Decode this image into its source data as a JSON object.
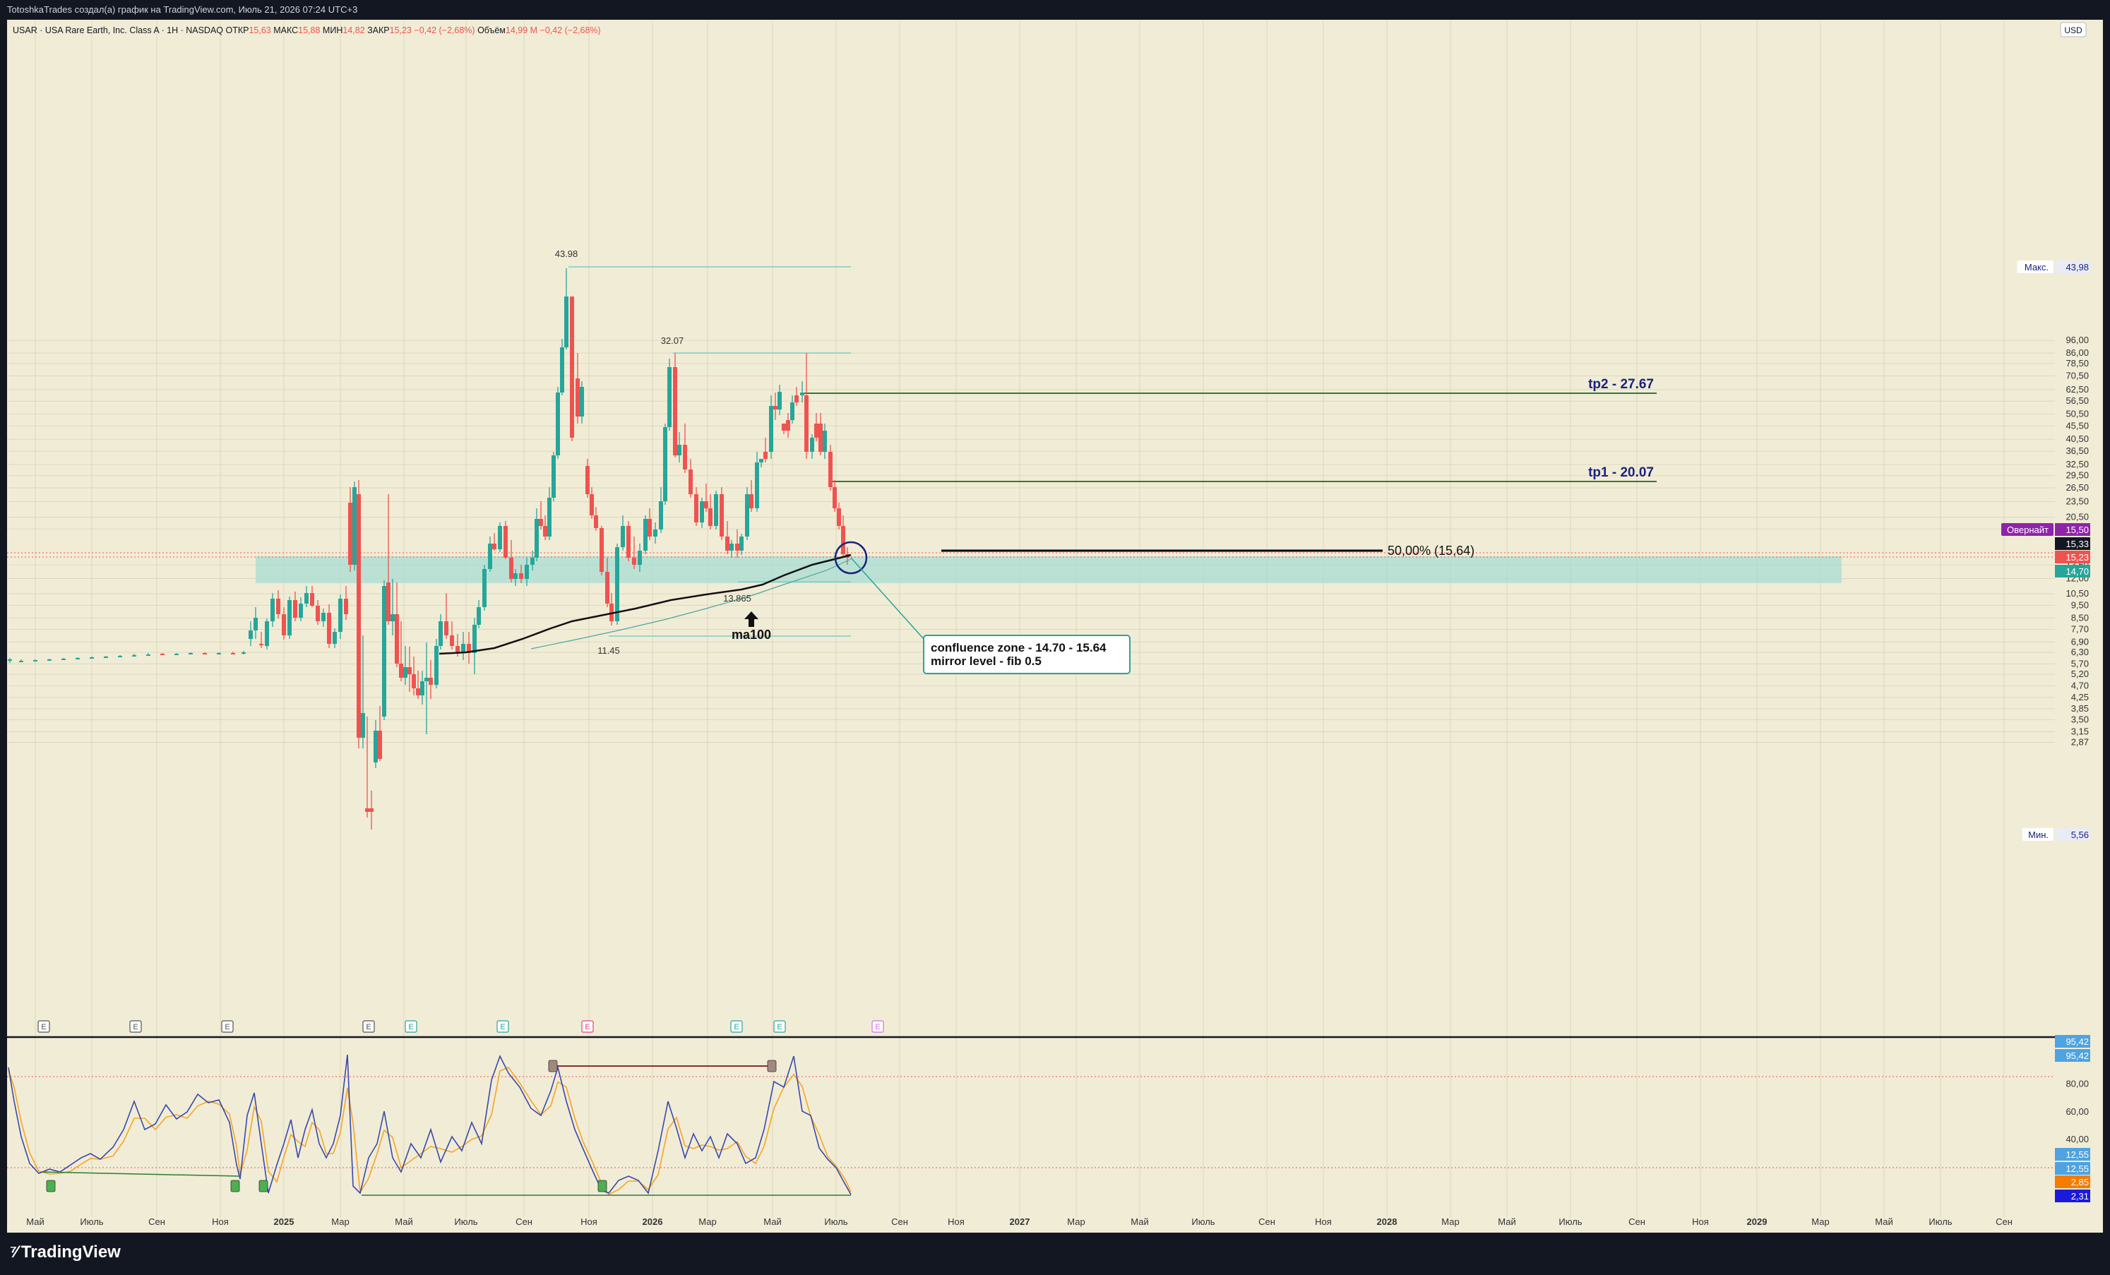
{
  "header": {
    "attribution": "TotoshkaTrades создал(а) график на TradingView.com, Июль 21, 2026 07:24 UTC+3"
  },
  "legend": {
    "symbol": "USAR · USA Rare Earth, Inc. Class A · 1Н · NASDAQ",
    "open_label": "ОТКР",
    "open_value": "15,63",
    "high_label": "МАКС",
    "high_value": "15,88",
    "low_label": "МИН",
    "low_value": "14,82",
    "close_label": "ЗАКР",
    "close_value": "15,23",
    "change": "−0,42 (−2,68%)",
    "volume_label": "Объём",
    "volume_value": "14,99 M",
    "volume_change": "−0,42 (−2,68%)"
  },
  "currency": "USD",
  "price_axis": {
    "ticks": [
      "96,00",
      "86,00",
      "78,50",
      "70,50",
      "62,50",
      "56,50",
      "50,50",
      "45,50",
      "40,50",
      "36,50",
      "32,50",
      "29,50",
      "26,50",
      "23,50",
      "20,50",
      "18,50",
      "13,50",
      "12,00",
      "10,50",
      "9,50",
      "8,50",
      "7,70",
      "6,90",
      "6,30",
      "5,70",
      "5,20",
      "4,70",
      "4,25",
      "3,85",
      "3,50",
      "3,15",
      "2,87"
    ],
    "max_label": "Макс.",
    "max_value": "43,98",
    "min_label": "Мин.",
    "min_value": "5,56",
    "overnight_label": "Овернайт",
    "overnight_value": "15,50",
    "price_black": "15,33",
    "price_red": "15,23",
    "price_teal": "14,70"
  },
  "annotations": {
    "high1": "43.98",
    "high2": "32.07",
    "low_a": "11.45",
    "low_b": "13.865",
    "ma_label": "ma100",
    "tp2": "tp2 - 27.67",
    "tp1": "tp1 - 20.07",
    "fib": "50,00% (15,64)",
    "callout_line1": "confluence zone - 14.70 - 15.64",
    "callout_line2": "mirror level - fib 0.5"
  },
  "earnings_markers": [
    "E",
    "E",
    "E",
    "E",
    "E",
    "E",
    "E",
    "E",
    "E",
    "E"
  ],
  "oscillator_axis": {
    "ticks": [
      "80,00",
      "60,00",
      "40,00",
      "20,00"
    ],
    "badge_top1": "95,42",
    "badge_top2": "95,42",
    "badge_low1": "12,55",
    "badge_low2": "12,55",
    "badge_orange": "2,85",
    "badge_blue": "2,31"
  },
  "time_axis": [
    "Май",
    "Июль",
    "Сен",
    "Ноя",
    "2025",
    "Мар",
    "Май",
    "Июль",
    "Сен",
    "Ноя",
    "2026",
    "Мар",
    "Май",
    "Июль",
    "Сен",
    "Ноя",
    "2027",
    "Мар",
    "Май",
    "Июль",
    "Сен",
    "Ноя",
    "2028",
    "Мар",
    "Май",
    "Июль",
    "Сен",
    "Ноя",
    "2029",
    "Мар",
    "Май",
    "Июль",
    "Сен"
  ],
  "brand": "TradingView",
  "colors": {
    "background": "#f1ecd6",
    "up": "#26a69a",
    "down": "#ef5350",
    "zone": "#a8ddd3",
    "tp_line": "#2e7d32",
    "label_navy": "#1a237e"
  }
}
